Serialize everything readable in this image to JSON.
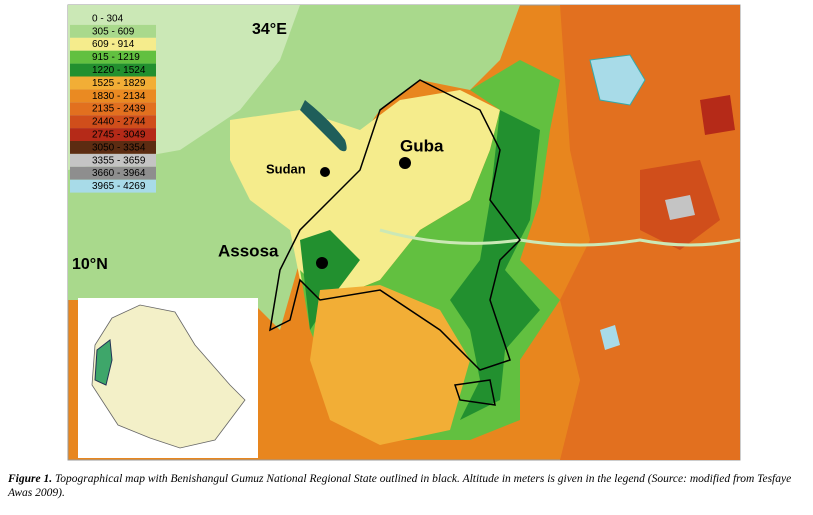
{
  "map": {
    "labels": {
      "longitude": "34°E",
      "latitude": "10°N",
      "guba": "Guba",
      "sudan": "Sudan",
      "assosa": "Assosa"
    },
    "legend": [
      {
        "label": "0 - 304",
        "color": "#cbe8b6"
      },
      {
        "label": "305 - 609",
        "color": "#a9d98c"
      },
      {
        "label": "609 - 914",
        "color": "#f5ec8c"
      },
      {
        "label": "915 - 1219",
        "color": "#62c040"
      },
      {
        "label": "1220 - 1524",
        "color": "#22902f"
      },
      {
        "label": "1525 - 1829",
        "color": "#f2ae36"
      },
      {
        "label": "1830 - 2134",
        "color": "#ea8a22"
      },
      {
        "label": "2135 - 2439",
        "color": "#e2701f"
      },
      {
        "label": "2440 - 2744",
        "color": "#d04e1b"
      },
      {
        "label": "2745 - 3049",
        "color": "#b52a18"
      },
      {
        "label": "3050 - 3354",
        "color": "#5c2c12"
      },
      {
        "label": "3355 - 3659",
        "color": "#c4c4c4"
      },
      {
        "label": "3660 - 3964",
        "color": "#8e8e8e"
      },
      {
        "label": "3965 - 4269",
        "color": "#a8dbe8"
      }
    ]
  },
  "caption": {
    "label": "Figure 1.",
    "text": "Topographical map with Benishangul Gumuz National Regional State outlined in black. Altitude in meters is given in the legend (Source: modified from Tesfaye Awas 2009)."
  }
}
